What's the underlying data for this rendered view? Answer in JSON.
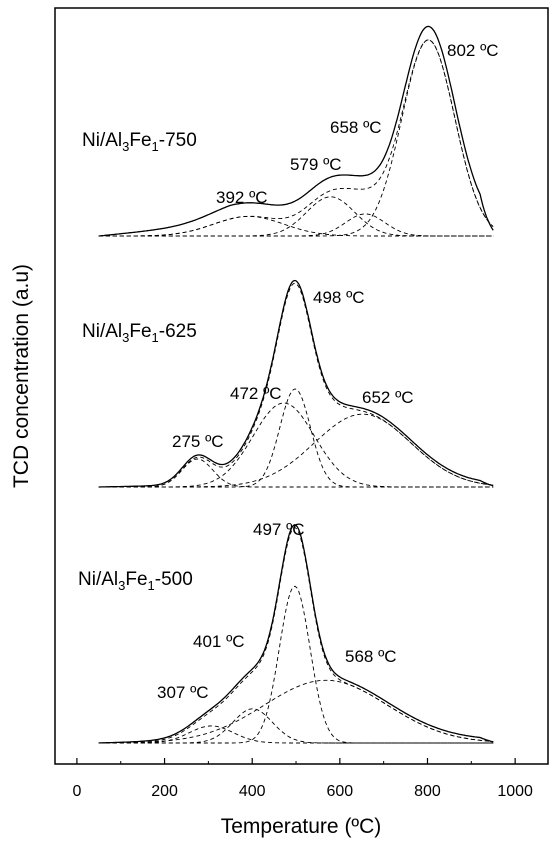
{
  "chart_data": {
    "type": "line",
    "xlabel": "Temperature (ºC)",
    "ylabel": "TCD concentration (a.u)",
    "xlim": [
      -50,
      1075
    ],
    "x_ticks": [
      0,
      200,
      400,
      600,
      800,
      1000
    ],
    "x_tick_labels": [
      "0",
      "200",
      "400",
      "600",
      "800",
      "1000"
    ],
    "y_ticks_shown": false,
    "grid": false,
    "legend": "none",
    "t_range": [
      50,
      950
    ],
    "panels": [
      {
        "sample_label": {
          "pre": "Ni/Al",
          "sub1": "3",
          "mid": "Fe",
          "sub2": "1",
          "post": "-750"
        },
        "baseline": 0.55,
        "peaks": [
          {
            "center": 392,
            "width": 80,
            "height": 0.8,
            "label": "392 ºC"
          },
          {
            "center": 579,
            "width": 55,
            "height": 1.6,
            "label": "579 ºC"
          },
          {
            "center": 658,
            "width": 45,
            "height": 0.9,
            "label": "658 ºC"
          },
          {
            "center": 802,
            "width": 60,
            "height": 8.0,
            "label": "802 ºC"
          }
        ]
      },
      {
        "sample_label": {
          "pre": "Ni/Al",
          "sub1": "3",
          "mid": "Fe",
          "sub2": "1",
          "post": "-625"
        },
        "baseline": 0.1,
        "peaks": [
          {
            "center": 275,
            "width": 35,
            "height": 1.0,
            "label": "275 ºC"
          },
          {
            "center": 472,
            "width": 70,
            "height": 3.0,
            "label": "472 ºC"
          },
          {
            "center": 498,
            "width": 35,
            "height": 3.5,
            "label": "498 ºC"
          },
          {
            "center": 652,
            "width": 110,
            "height": 2.6,
            "label": "652 ºC"
          }
        ]
      },
      {
        "sample_label": {
          "pre": "Ni/Al",
          "sub1": "3",
          "mid": "Fe",
          "sub2": "1",
          "post": "-500"
        },
        "baseline": 0.1,
        "peaks": [
          {
            "center": 307,
            "width": 50,
            "height": 0.6,
            "label": "307 ºC"
          },
          {
            "center": 401,
            "width": 45,
            "height": 1.2,
            "label": "401 ºC"
          },
          {
            "center": 497,
            "width": 35,
            "height": 5.5,
            "label": "497 ºC"
          },
          {
            "center": 568,
            "width": 140,
            "height": 2.2,
            "label": "568 ºC"
          }
        ]
      }
    ]
  }
}
